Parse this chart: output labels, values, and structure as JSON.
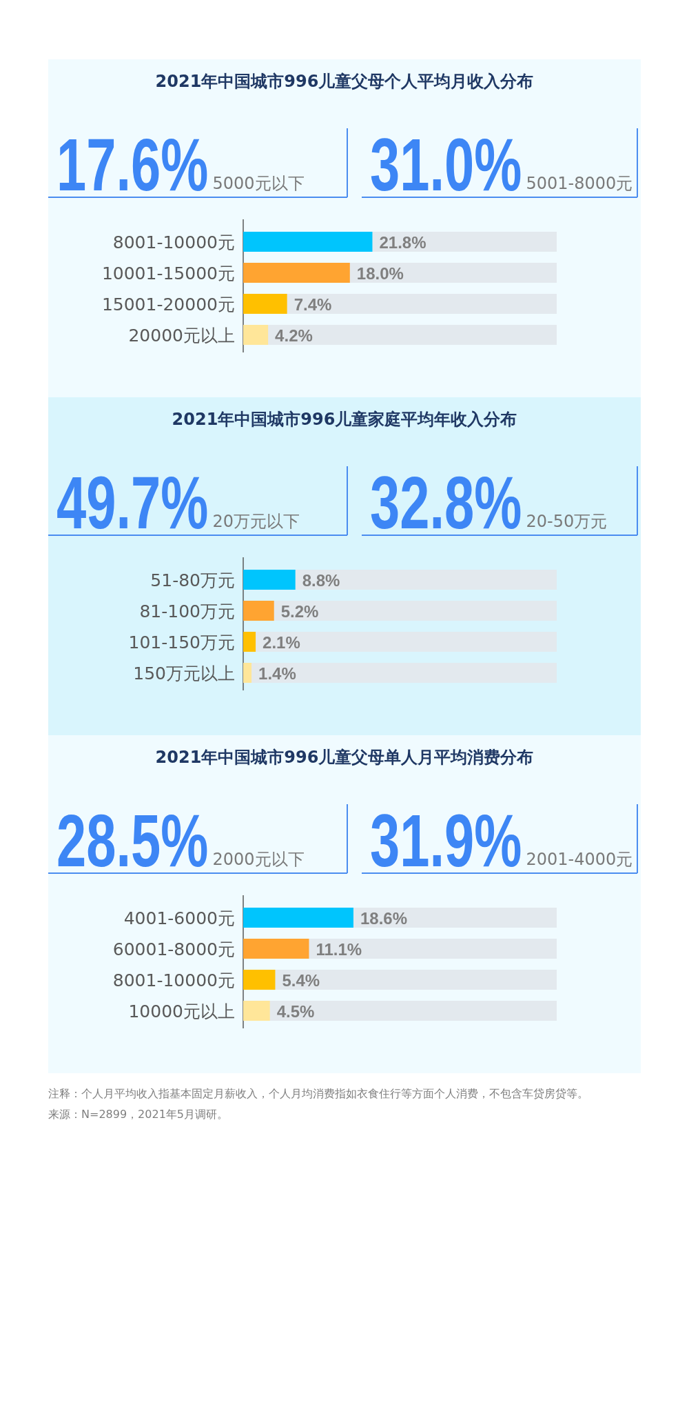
{
  "chart_data": [
    {
      "type": "bar",
      "orientation": "horizontal",
      "title": "2021年中国城市996儿童父母个人平均月收入分布",
      "annotations": [
        "17.6%",
        "5000元以下",
        "31.0%",
        "5001-8000元"
      ],
      "categories": [
        "8001-10000元",
        "10001-15000元",
        "15001-20000元",
        "20000元以上"
      ],
      "values": [
        21.8,
        18.0,
        7.4,
        4.2
      ],
      "value_labels": [
        "21.8%",
        "18.0%",
        "7.4%",
        "4.2%"
      ],
      "colors": [
        "#00c5fd",
        "#ffa431",
        "#ffc000",
        "#ffe699"
      ]
    },
    {
      "type": "bar",
      "orientation": "horizontal",
      "title": "2021年中国城市996儿童家庭平均年收入分布",
      "annotations": [
        "49.7%",
        "20万元以下",
        "32.8%",
        "20-50万元"
      ],
      "categories": [
        "51-80万元",
        "81-100万元",
        "101-150万元",
        "150万元以上"
      ],
      "values": [
        8.8,
        5.2,
        2.1,
        1.4
      ],
      "value_labels": [
        "8.8%",
        "5.2%",
        "2.1%",
        "1.4%"
      ],
      "colors": [
        "#00c5fd",
        "#ffa431",
        "#ffc000",
        "#ffe699"
      ]
    },
    {
      "type": "bar",
      "orientation": "horizontal",
      "title": "2021年中国城市996儿童父母单人月平均消费分布",
      "annotations": [
        "28.5%",
        "2000元以下",
        "31.9%",
        "2001-4000元"
      ],
      "categories": [
        "4001-6000元",
        "60001-8000元",
        "8001-10000元",
        "10000元以上"
      ],
      "values": [
        18.6,
        11.1,
        5.4,
        4.5
      ],
      "value_labels": [
        "18.6%",
        "11.1%",
        "5.4%",
        "4.5%"
      ],
      "colors": [
        "#00c5fd",
        "#ffa431",
        "#ffc000",
        "#ffe699"
      ]
    },
    {
      "type": "other",
      "annotations": [
        "注释：个人月平均收入指基本固定月薪收入，个人月均消费指如衣食住行等方面个人消费，不包含车贷房贷等。",
        "来源：N=2899，2021年5月调研。"
      ]
    }
  ]
}
